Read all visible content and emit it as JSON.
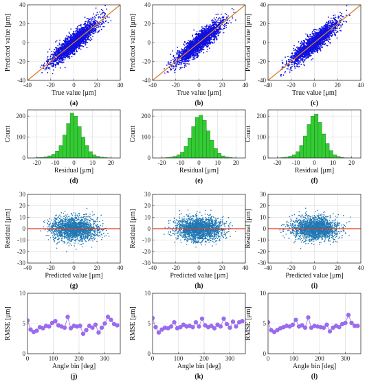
{
  "chart_data": [
    {
      "id": "a",
      "type": "scatter",
      "caption": "(a)",
      "xlabel": "True value [μm]",
      "ylabel": "Predicted value [μm]",
      "xlim": [
        -40,
        40
      ],
      "ylim": [
        -40,
        40
      ],
      "xticks": [
        -40,
        -20,
        0,
        20,
        40
      ],
      "yticks": [
        -40,
        -20,
        0,
        20,
        40
      ],
      "grid": true,
      "point_cloud": {
        "n_points": 2400,
        "x_mean": 0,
        "x_sd": 10,
        "slope": 1,
        "noise_sd": 5,
        "x_range": [
          -30,
          32
        ]
      },
      "reference_line": {
        "slope": 1,
        "intercept": 0,
        "color": "#D9822B"
      },
      "point_color": "#1010E0"
    },
    {
      "id": "b",
      "type": "scatter",
      "caption": "(b)",
      "xlabel": "True value [μm]",
      "ylabel": "Predicted value [μm]",
      "xlim": [
        -40,
        40
      ],
      "ylim": [
        -40,
        40
      ],
      "xticks": [
        -40,
        -20,
        0,
        20,
        40
      ],
      "yticks": [
        -40,
        -20,
        0,
        20,
        40
      ],
      "grid": true,
      "point_cloud": {
        "n_points": 2400,
        "x_mean": 0,
        "x_sd": 10,
        "slope": 1,
        "noise_sd": 5,
        "x_range": [
          -30,
          32
        ]
      },
      "reference_line": {
        "slope": 1,
        "intercept": 0,
        "color": "#D9822B"
      },
      "point_color": "#1010E0"
    },
    {
      "id": "c",
      "type": "scatter",
      "caption": "(c)",
      "xlabel": "True value [μm]",
      "ylabel": "Predicted value [μm]",
      "xlim": [
        -40,
        40
      ],
      "ylim": [
        -40,
        40
      ],
      "xticks": [
        -40,
        -20,
        0,
        20,
        40
      ],
      "yticks": [
        -40,
        -20,
        0,
        20,
        40
      ],
      "grid": true,
      "point_cloud": {
        "n_points": 2400,
        "x_mean": 0,
        "x_sd": 10,
        "slope": 1,
        "noise_sd": 5,
        "x_range": [
          -30,
          32
        ]
      },
      "reference_line": {
        "slope": 1,
        "intercept": 0,
        "color": "#D9822B"
      },
      "point_color": "#1010E0"
    },
    {
      "id": "d",
      "type": "bar",
      "caption": "(d)",
      "xlabel": "Residual [μm]",
      "ylabel": "Count",
      "xlim": [
        -25,
        25
      ],
      "ylim": [
        0,
        230
      ],
      "xticks": [
        -20,
        -10,
        0,
        10,
        20
      ],
      "yticks": [
        0,
        100,
        200
      ],
      "grid": true,
      "bin_edges": [
        -22,
        -20,
        -18,
        -16,
        -14,
        -12,
        -10,
        -8,
        -6,
        -4,
        -2,
        0,
        2,
        4,
        6,
        8,
        10,
        12,
        14,
        16,
        18,
        20
      ],
      "values": [
        1,
        2,
        3,
        6,
        10,
        18,
        32,
        60,
        110,
        165,
        215,
        200,
        150,
        100,
        60,
        30,
        15,
        8,
        4,
        2,
        1
      ],
      "bar_color": "#33CC33"
    },
    {
      "id": "e",
      "type": "bar",
      "caption": "(e)",
      "xlabel": "Residual [μm]",
      "ylabel": "Count",
      "xlim": [
        -25,
        25
      ],
      "ylim": [
        0,
        230
      ],
      "xticks": [
        -20,
        -10,
        0,
        10,
        20
      ],
      "yticks": [
        0,
        100,
        200
      ],
      "grid": true,
      "bin_edges": [
        -20,
        -18,
        -16,
        -14,
        -12,
        -10,
        -8,
        -6,
        -4,
        -2,
        0,
        2,
        4,
        6,
        8,
        10,
        12,
        14,
        16,
        18,
        20
      ],
      "values": [
        1,
        2,
        4,
        8,
        15,
        28,
        55,
        95,
        150,
        195,
        205,
        180,
        130,
        85,
        45,
        22,
        10,
        5,
        2,
        1
      ],
      "bar_color": "#33CC33"
    },
    {
      "id": "f",
      "type": "bar",
      "caption": "(f)",
      "xlabel": "Residual [μm]",
      "ylabel": "Count",
      "xlim": [
        -25,
        25
      ],
      "ylim": [
        0,
        230
      ],
      "xticks": [
        -20,
        -10,
        0,
        10,
        20
      ],
      "yticks": [
        0,
        100,
        200
      ],
      "grid": true,
      "bin_edges": [
        -20,
        -18,
        -16,
        -14,
        -12,
        -10,
        -8,
        -6,
        -4,
        -2,
        0,
        2,
        4,
        6,
        8,
        10,
        12,
        14,
        16,
        18,
        20
      ],
      "values": [
        1,
        2,
        4,
        8,
        15,
        30,
        60,
        105,
        160,
        200,
        210,
        170,
        115,
        70,
        35,
        15,
        7,
        3,
        1,
        1
      ],
      "bar_color": "#33CC33"
    },
    {
      "id": "g",
      "type": "scatter",
      "caption": "(g)",
      "xlabel": "Predicted value [μm]",
      "ylabel": "Residual [μm]",
      "xlim": [
        -40,
        40
      ],
      "ylim": [
        -30,
        30
      ],
      "xticks": [
        -40,
        -20,
        0,
        20,
        40
      ],
      "yticks": [
        -30,
        -20,
        -10,
        0,
        10,
        20,
        30
      ],
      "grid": true,
      "point_cloud": {
        "n_points": 2000,
        "x_mean": 0,
        "x_sd": 10,
        "slope": 0,
        "noise_sd": 5,
        "x_range": [
          -30,
          32
        ]
      },
      "reference_line": {
        "slope": 0,
        "intercept": 0,
        "color": "#E03A1E"
      },
      "point_color": "#1F78B4"
    },
    {
      "id": "h",
      "type": "scatter",
      "caption": "(h)",
      "xlabel": "Predicted value [μm]",
      "ylabel": "Residual [μm]",
      "xlim": [
        -40,
        40
      ],
      "ylim": [
        -30,
        30
      ],
      "xticks": [
        -40,
        -20,
        0,
        20,
        40
      ],
      "yticks": [
        -30,
        -20,
        -10,
        0,
        10,
        20,
        30
      ],
      "grid": true,
      "point_cloud": {
        "n_points": 2000,
        "x_mean": 0,
        "x_sd": 10,
        "slope": 0,
        "noise_sd": 5,
        "x_range": [
          -30,
          32
        ]
      },
      "reference_line": {
        "slope": 0,
        "intercept": 0,
        "color": "#E03A1E"
      },
      "point_color": "#1F78B4"
    },
    {
      "id": "i",
      "type": "scatter",
      "caption": "(i)",
      "xlabel": "Predicted value [μm]",
      "ylabel": "Residual [μm]",
      "xlim": [
        -40,
        40
      ],
      "ylim": [
        -30,
        30
      ],
      "xticks": [
        -40,
        -20,
        0,
        20,
        40
      ],
      "yticks": [
        -30,
        -20,
        -10,
        0,
        10,
        20,
        30
      ],
      "grid": true,
      "point_cloud": {
        "n_points": 2000,
        "x_mean": 0,
        "x_sd": 10,
        "slope": 0,
        "noise_sd": 5,
        "x_range": [
          -30,
          32
        ]
      },
      "reference_line": {
        "slope": 0,
        "intercept": 0,
        "color": "#E03A1E"
      },
      "point_color": "#1F78B4"
    },
    {
      "id": "j",
      "type": "line",
      "caption": "(j)",
      "xlabel": "Angle bin [deg]",
      "ylabel": "RMSE [μm]",
      "xlim": [
        0,
        360
      ],
      "ylim": [
        0,
        10
      ],
      "xticks": [
        0,
        100,
        200,
        300
      ],
      "yticks": [
        0,
        5,
        10
      ],
      "grid": true,
      "x": [
        0,
        12,
        24,
        36,
        48,
        60,
        72,
        84,
        96,
        108,
        120,
        132,
        144,
        156,
        168,
        180,
        192,
        204,
        216,
        228,
        240,
        252,
        264,
        276,
        288,
        300,
        312,
        324,
        336,
        348
      ],
      "y": [
        5.5,
        4.0,
        3.6,
        3.8,
        4.4,
        4.2,
        4.6,
        4.5,
        5.1,
        5.4,
        4.7,
        4.5,
        4.3,
        6.1,
        4.2,
        4.6,
        4.5,
        4.6,
        3.3,
        3.9,
        4.6,
        4.3,
        4.8,
        3.5,
        4.3,
        5.0,
        6.1,
        5.6,
        4.9,
        4.7
      ],
      "line_color": "#B982F0",
      "marker_color": "#9B6CF0"
    },
    {
      "id": "k",
      "type": "line",
      "caption": "(k)",
      "xlabel": "Angle bin [deg]",
      "ylabel": "RMSE [μm]",
      "xlim": [
        0,
        360
      ],
      "ylim": [
        0,
        10
      ],
      "xticks": [
        0,
        100,
        200,
        300
      ],
      "yticks": [
        0,
        5,
        10
      ],
      "grid": true,
      "x": [
        0,
        12,
        24,
        36,
        48,
        60,
        72,
        84,
        96,
        108,
        120,
        132,
        144,
        156,
        168,
        180,
        192,
        204,
        216,
        228,
        240,
        252,
        264,
        276,
        288,
        300,
        312,
        324,
        336,
        348
      ],
      "y": [
        5.9,
        4.4,
        3.5,
        4.0,
        4.3,
        4.2,
        4.5,
        5.2,
        4.2,
        4.4,
        4.8,
        4.5,
        4.6,
        4.4,
        5.2,
        4.5,
        5.8,
        4.7,
        4.4,
        4.6,
        4.2,
        4.8,
        4.5,
        5.8,
        4.9,
        4.3,
        5.3,
        4.5,
        5.2,
        5.4
      ],
      "line_color": "#B982F0",
      "marker_color": "#9B6CF0"
    },
    {
      "id": "l",
      "type": "line",
      "caption": "(l)",
      "xlabel": "Angle bin [deg]",
      "ylabel": "RMSE [μm]",
      "xlim": [
        0,
        360
      ],
      "ylim": [
        0,
        10
      ],
      "xticks": [
        0,
        100,
        200,
        300
      ],
      "yticks": [
        0,
        5,
        10
      ],
      "grid": true,
      "x": [
        0,
        12,
        24,
        36,
        48,
        60,
        72,
        84,
        96,
        108,
        120,
        132,
        144,
        156,
        168,
        180,
        192,
        204,
        216,
        228,
        240,
        252,
        264,
        276,
        288,
        300,
        312,
        324,
        336,
        348
      ],
      "y": [
        5.2,
        3.9,
        3.6,
        3.9,
        4.2,
        4.4,
        4.6,
        4.5,
        4.8,
        5.6,
        4.5,
        4.7,
        4.3,
        6.0,
        4.3,
        4.6,
        4.5,
        4.4,
        4.3,
        4.8,
        3.7,
        4.3,
        4.6,
        4.4,
        4.9,
        5.1,
        6.4,
        5.1,
        4.6,
        4.6
      ],
      "line_color": "#B982F0",
      "marker_color": "#9B6CF0"
    }
  ]
}
